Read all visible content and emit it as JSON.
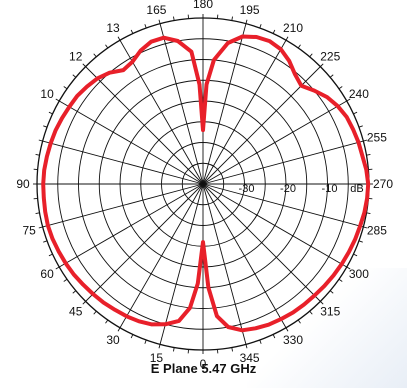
{
  "chart_data": {
    "type": "polar",
    "title": "E Plane 5.47  GHz",
    "radial_unit": "dB",
    "radial_range": [
      -40,
      0
    ],
    "radial_ticks": [
      {
        "value": -30,
        "label": "-30"
      },
      {
        "value": -20,
        "label": "-20"
      },
      {
        "value": -10,
        "label": "-10"
      }
    ],
    "angle_tick_labels": [
      {
        "angle": 0,
        "label": "0"
      },
      {
        "angle": 15,
        "label": "345"
      },
      {
        "angle": 30,
        "label": "330"
      },
      {
        "angle": 45,
        "label": "315"
      },
      {
        "angle": 60,
        "label": "300"
      },
      {
        "angle": 75,
        "label": "285"
      },
      {
        "angle": 90,
        "label": "270"
      },
      {
        "angle": 105,
        "label": "255"
      },
      {
        "angle": 120,
        "label": "240"
      },
      {
        "angle": 135,
        "label": "225"
      },
      {
        "angle": 150,
        "label": "210"
      },
      {
        "angle": 165,
        "label": "195"
      },
      {
        "angle": 180,
        "label": "180"
      },
      {
        "angle": 195,
        "label": "165"
      },
      {
        "angle": 210,
        "label": "13"
      },
      {
        "angle": 225,
        "label": "12"
      },
      {
        "angle": 240,
        "label": "10"
      },
      {
        "angle": 270,
        "label": "90"
      },
      {
        "angle": 285,
        "label": "75"
      },
      {
        "angle": 300,
        "label": "60"
      },
      {
        "angle": 315,
        "label": "45"
      },
      {
        "angle": 330,
        "label": "30"
      },
      {
        "angle": 345,
        "label": "15"
      }
    ],
    "series": [
      {
        "color": "#e8202a",
        "angles": [
          0,
          3,
          6,
          10,
          15,
          20,
          25,
          30,
          35,
          40,
          45,
          50,
          55,
          60,
          65,
          70,
          75,
          80,
          85,
          90,
          95,
          100,
          105,
          110,
          115,
          120,
          125,
          130,
          135,
          140,
          145,
          150,
          155,
          160,
          165,
          170,
          175,
          178,
          180,
          182,
          185,
          190,
          195,
          200,
          205,
          210,
          215,
          220,
          225,
          230,
          235,
          240,
          245,
          250,
          255,
          260,
          265,
          270,
          275,
          280,
          285,
          290,
          295,
          300,
          305,
          310,
          315,
          320,
          325,
          330,
          335,
          340,
          345,
          350,
          354,
          357,
          360
        ],
        "values": [
          -26,
          -15,
          -8,
          -5,
          -3.5,
          -3,
          -2.6,
          -2.4,
          -2.2,
          -2.1,
          -2,
          -1.8,
          -1.6,
          -1.4,
          -1.2,
          -1,
          -0.8,
          -0.5,
          -0.3,
          -0.2,
          -0.5,
          -1,
          -1.2,
          -1.5,
          -1.8,
          -2.5,
          -3.5,
          -5,
          -6.5,
          -5.5,
          -3.8,
          -2.5,
          -2,
          -2.3,
          -3.2,
          -5.5,
          -10,
          -16,
          -27,
          -16,
          -8,
          -5,
          -3.5,
          -3.5,
          -4.5,
          -6,
          -6.5,
          -5,
          -4,
          -3.5,
          -3,
          -2.8,
          -2.5,
          -2.2,
          -2,
          -1.8,
          -1.6,
          -1.5,
          -1.5,
          -1.4,
          -1.3,
          -1.4,
          -1.6,
          -1.8,
          -2,
          -2.3,
          -2.5,
          -2.7,
          -3,
          -3.2,
          -3.5,
          -4,
          -5,
          -6.5,
          -10,
          -16,
          -26
        ]
      }
    ]
  }
}
